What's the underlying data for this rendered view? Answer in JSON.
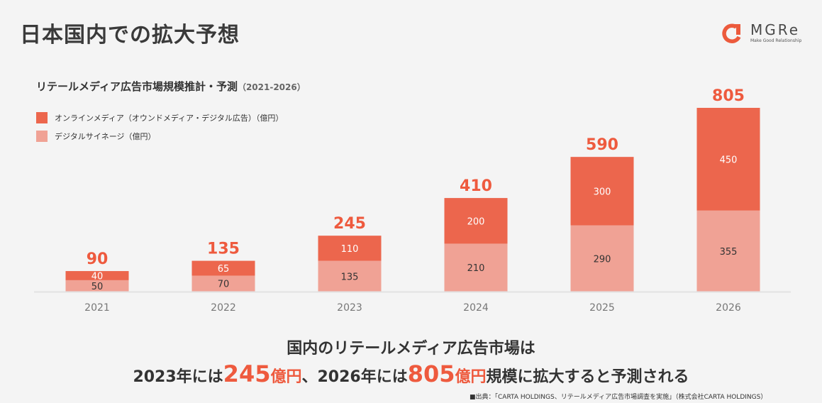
{
  "page": {
    "title": "日本国内での拡大予想",
    "logo": {
      "name": "MGRe",
      "tagline": "Make Good Relationship"
    }
  },
  "colors": {
    "online": "#ec664d",
    "signage": "#f0a295",
    "accent": "#ee5a3e",
    "text_dark": "#333333",
    "axis_text": "#777777"
  },
  "chart_data": {
    "type": "bar",
    "stacked": true,
    "title": "リテールメディア広告市場規模推計・予測",
    "title_range": "（2021-2026）",
    "categories": [
      "2021",
      "2022",
      "2023",
      "2024",
      "2025",
      "2026"
    ],
    "series": [
      {
        "name": "デジタルサイネージ（億円）",
        "values": [
          50,
          70,
          135,
          210,
          290,
          355
        ]
      },
      {
        "name": "オンラインメディア（オウンドメディア・デジタル広告）（億円）",
        "values": [
          40,
          65,
          110,
          200,
          300,
          450
        ]
      }
    ],
    "totals": [
      90,
      135,
      245,
      410,
      590,
      805
    ],
    "legend": [
      "オンラインメディア（オウンドメディア・デジタル広告）（億円）",
      "デジタルサイネージ（億円）"
    ],
    "legend_position": "top-left",
    "xlabel": "",
    "ylabel": "",
    "ylim": [
      0,
      805
    ],
    "grid": false
  },
  "summary": {
    "line1": "国内のリテールメディア広告市場は",
    "line2_parts": {
      "a": "2023年には",
      "num1": "245",
      "unit1": "億円",
      "b": "、2026年には",
      "num2": "805",
      "unit2": "億円",
      "c": "規模に拡大すると予測される"
    }
  },
  "source": "■出典：「CARTA HOLDINGS、リテールメディア広告市場調査を実施」（株式会社CARTA HOLDINGS）"
}
